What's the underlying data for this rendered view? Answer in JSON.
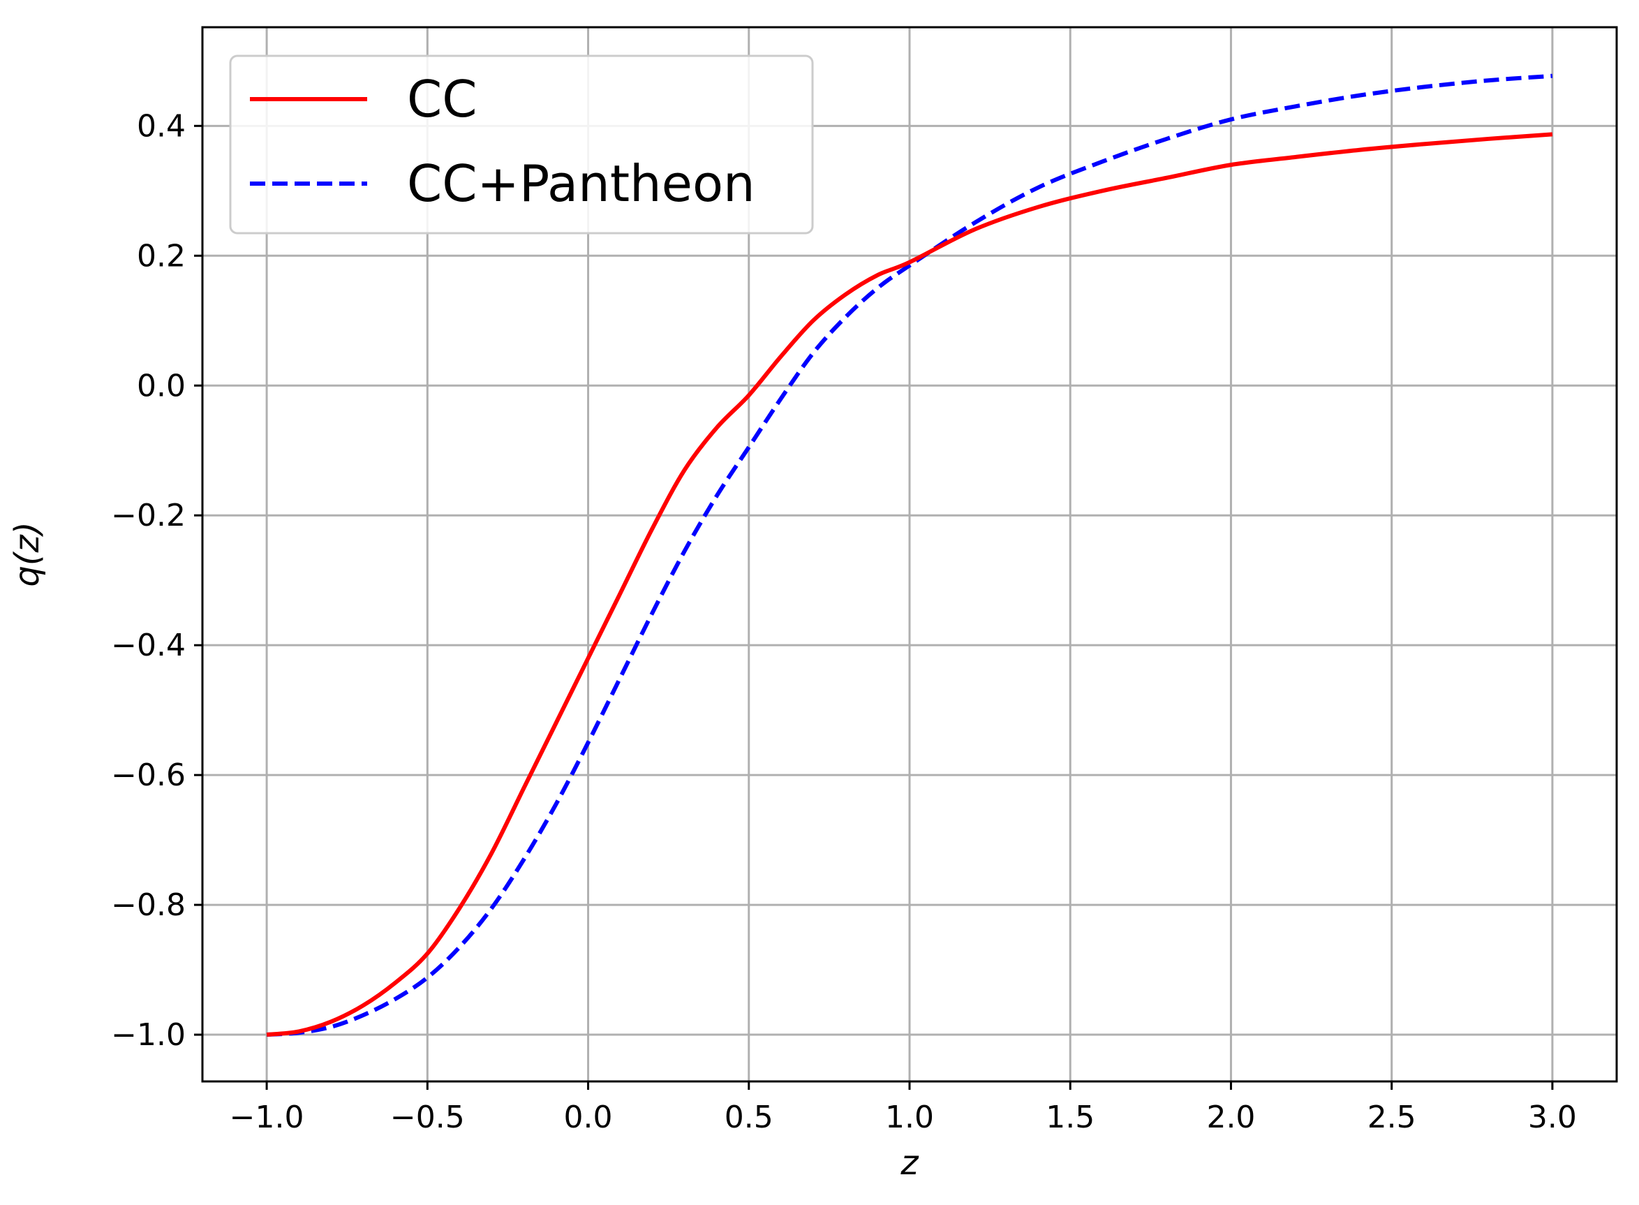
{
  "chart_data": {
    "type": "line",
    "title": "",
    "xlabel": "z",
    "ylabel": "q(z)",
    "xlim": [
      -1.2,
      3.2
    ],
    "ylim": [
      -1.072,
      0.552
    ],
    "xticks": [
      -1.0,
      -0.5,
      0.0,
      0.5,
      1.0,
      1.5,
      2.0,
      2.5,
      3.0
    ],
    "yticks": [
      -1.0,
      -0.8,
      -0.6,
      -0.4,
      -0.2,
      0.0,
      0.2,
      0.4
    ],
    "xtick_labels": [
      "−1.0",
      "−0.5",
      "0.0",
      "0.5",
      "1.0",
      "1.5",
      "2.0",
      "2.5",
      "3.0"
    ],
    "ytick_labels": [
      "−1.0",
      "−0.8",
      "−0.6",
      "−0.4",
      "−0.2",
      "0.0",
      "0.2",
      "0.4"
    ],
    "grid": true,
    "legend_position": "top-left",
    "x": [
      -1.0,
      -0.9,
      -0.8,
      -0.7,
      -0.6,
      -0.5,
      -0.4,
      -0.3,
      -0.2,
      -0.1,
      0.0,
      0.1,
      0.2,
      0.3,
      0.4,
      0.5,
      0.6,
      0.7,
      0.8,
      0.9,
      1.0,
      1.2,
      1.4,
      1.6,
      1.8,
      2.0,
      2.2,
      2.4,
      2.6,
      2.8,
      3.0
    ],
    "series": [
      {
        "name": "CC",
        "color": "#ff0000",
        "linestyle": "solid",
        "values": [
          -1.0,
          -0.995,
          -0.98,
          -0.955,
          -0.92,
          -0.875,
          -0.805,
          -0.72,
          -0.62,
          -0.52,
          -0.42,
          -0.32,
          -0.22,
          -0.13,
          -0.065,
          -0.015,
          0.045,
          0.1,
          0.14,
          0.17,
          0.19,
          0.24,
          0.275,
          0.3,
          0.32,
          0.34,
          0.352,
          0.363,
          0.372,
          0.38,
          0.387
        ]
      },
      {
        "name": "CC+Pantheon",
        "color": "#0000ff",
        "linestyle": "dashed",
        "values": [
          -1.0,
          -0.997,
          -0.988,
          -0.97,
          -0.945,
          -0.912,
          -0.865,
          -0.805,
          -0.73,
          -0.645,
          -0.55,
          -0.45,
          -0.35,
          -0.255,
          -0.17,
          -0.095,
          -0.02,
          0.05,
          0.105,
          0.15,
          0.185,
          0.25,
          0.305,
          0.345,
          0.38,
          0.41,
          0.43,
          0.447,
          0.46,
          0.47,
          0.477
        ]
      }
    ]
  }
}
